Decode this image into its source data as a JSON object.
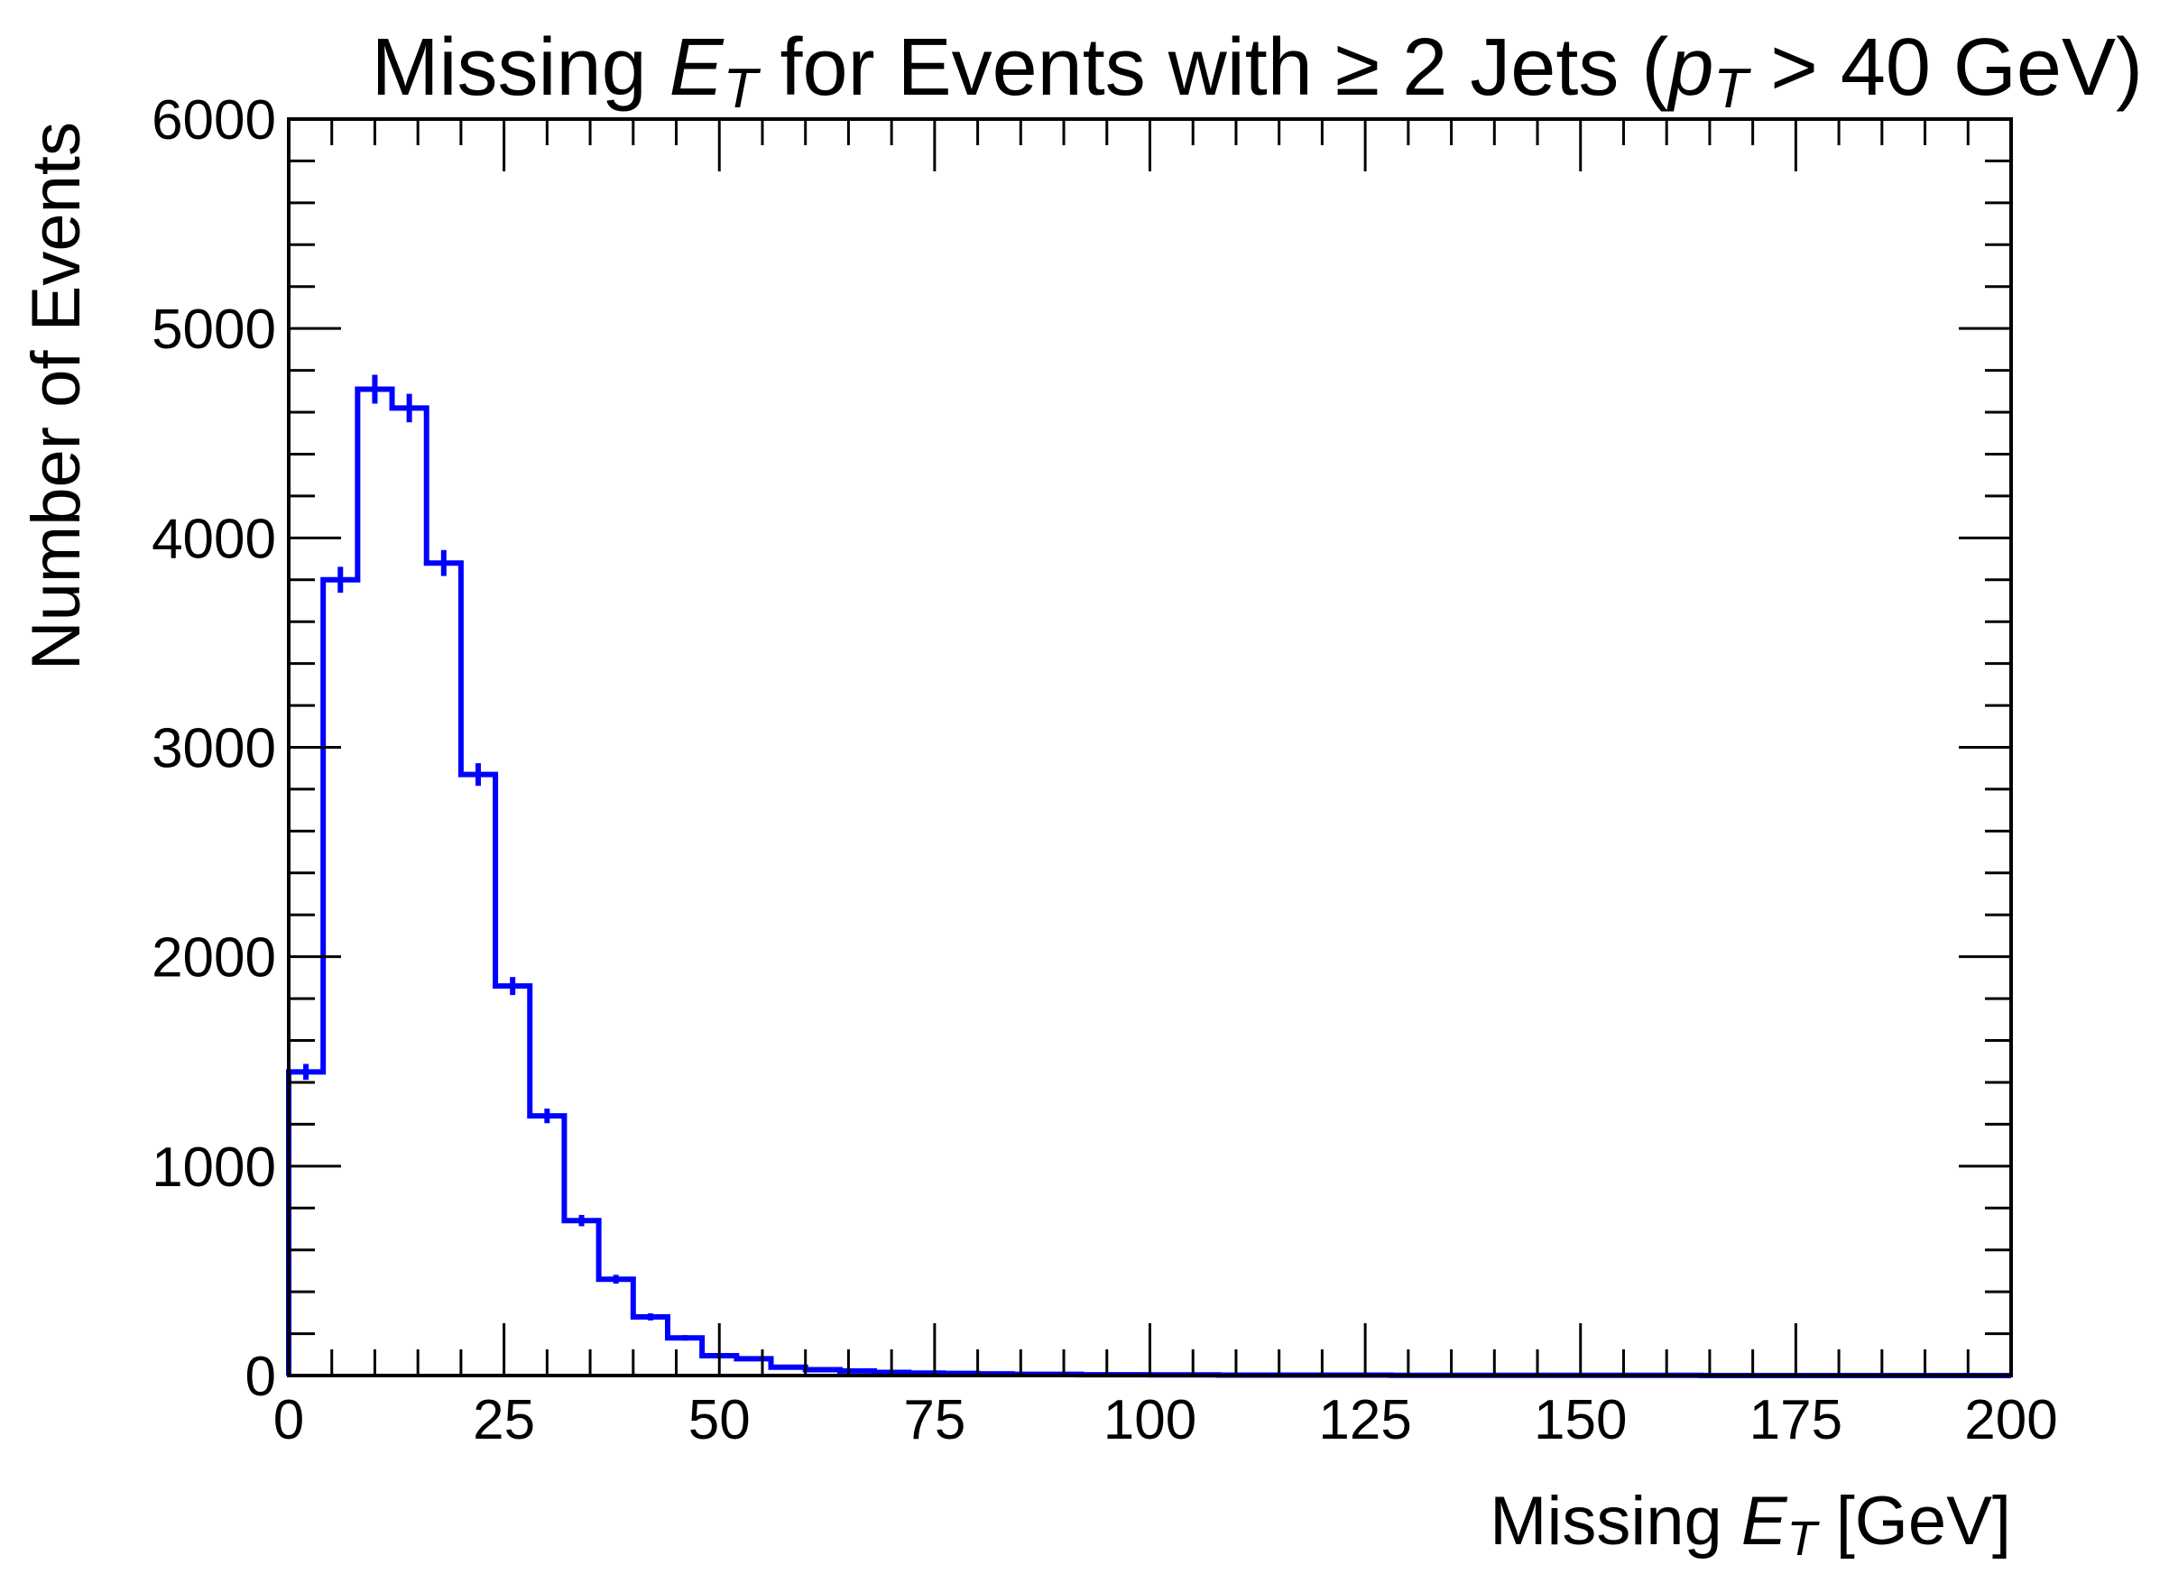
{
  "chart_data": {
    "type": "histogram",
    "title": {
      "prefix": "Missing ",
      "e": "E",
      "t": "T",
      "middle": " for Events with ",
      "geq": "≥",
      "middle2": " 2 Jets (",
      "p": "p",
      "t2": "T",
      "suffix": " > 40 GeV)"
    },
    "xlabel": {
      "prefix": "Missing ",
      "e": "E",
      "t": "T",
      "suffix": " [GeV]"
    },
    "ylabel": "Number of Events",
    "xlim": [
      0,
      200
    ],
    "ylim": [
      0,
      6000
    ],
    "xticks": [
      "0",
      "25",
      "50",
      "75",
      "100",
      "125",
      "150",
      "175",
      "200"
    ],
    "xtick_values": [
      0,
      25,
      50,
      75,
      100,
      125,
      150,
      175,
      200
    ],
    "yticks": [
      "0",
      "1000",
      "2000",
      "3000",
      "4000",
      "5000",
      "6000"
    ],
    "ytick_values": [
      0,
      1000,
      2000,
      3000,
      4000,
      5000,
      6000
    ],
    "bin_edges": [
      0,
      4,
      8,
      12,
      16,
      20,
      24,
      28,
      32,
      36,
      40,
      44,
      48,
      52,
      56,
      60,
      64,
      68,
      72,
      76,
      80,
      84,
      88,
      92,
      96,
      100,
      104,
      108,
      112,
      116,
      120,
      124,
      128,
      132,
      136,
      140,
      144,
      148,
      152,
      156,
      160,
      164,
      168,
      172,
      176,
      180,
      184,
      188,
      192,
      196,
      200
    ],
    "values": [
      1450,
      3800,
      4710,
      4620,
      3880,
      2870,
      1860,
      1240,
      740,
      460,
      280,
      180,
      95,
      80,
      40,
      28,
      22,
      15,
      12,
      10,
      8,
      6,
      6,
      4,
      4,
      3,
      3,
      2,
      2,
      2,
      2,
      2,
      1,
      1,
      1,
      1,
      1,
      1,
      1,
      1,
      1,
      0,
      0,
      0,
      0,
      0,
      0,
      0,
      0,
      0
    ],
    "errors": [
      38,
      62,
      69,
      68,
      62,
      54,
      43,
      35,
      27,
      21,
      17,
      13,
      10,
      9,
      6,
      5,
      5,
      4,
      3,
      3,
      3,
      2,
      2,
      2,
      2,
      2,
      2,
      1,
      1,
      1,
      1,
      1,
      1,
      1,
      1,
      1,
      1,
      1,
      1,
      1,
      1,
      0,
      0,
      0,
      0,
      0,
      0,
      0,
      0,
      0
    ],
    "line_color": "#0000ff",
    "grid": false
  }
}
